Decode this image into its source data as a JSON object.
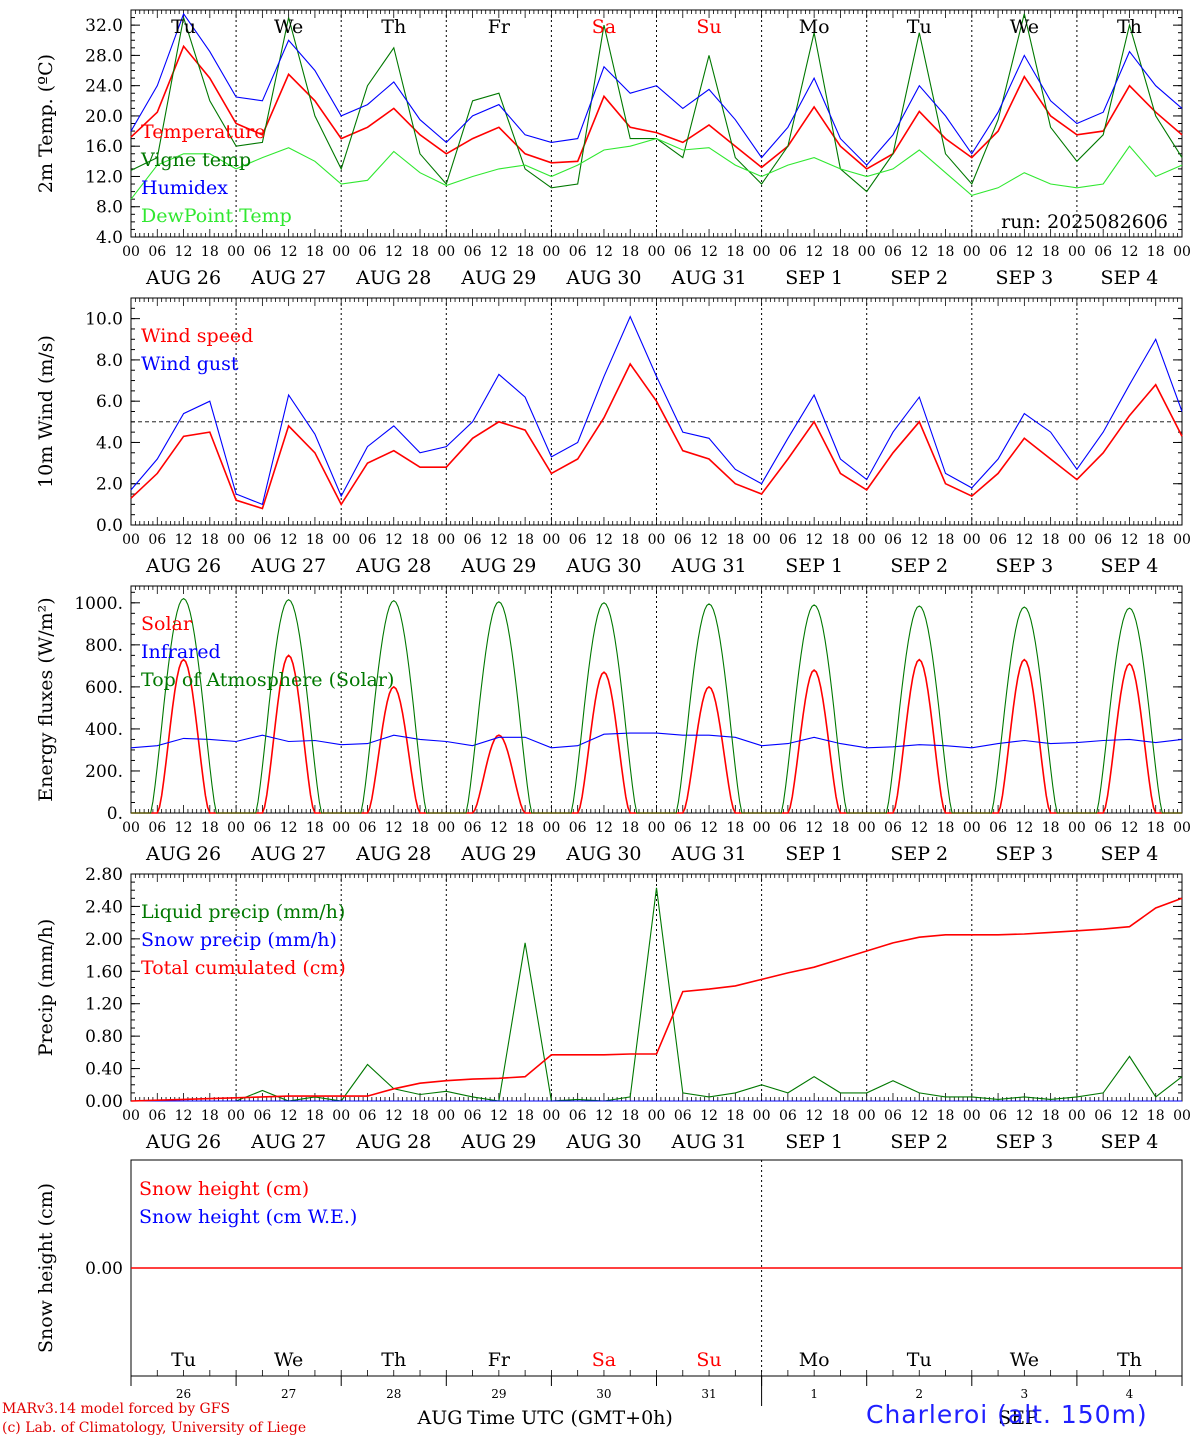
{
  "colors": {
    "red": "#ff0000",
    "blue": "#0000ff",
    "green": "#007800",
    "lightgreen": "#30e830",
    "axis": "#000000",
    "weekend": "#ff0000"
  },
  "days": [
    {
      "dow": "Tu",
      "date": "AUG 26",
      "num": "26",
      "weekend": false
    },
    {
      "dow": "We",
      "date": "AUG 27",
      "num": "27",
      "weekend": false
    },
    {
      "dow": "Th",
      "date": "AUG 28",
      "num": "28",
      "weekend": false
    },
    {
      "dow": "Fr",
      "date": "AUG 29",
      "num": "29",
      "weekend": false
    },
    {
      "dow": "Sa",
      "date": "AUG 30",
      "num": "30",
      "weekend": true
    },
    {
      "dow": "Su",
      "date": "AUG 31",
      "num": "31",
      "weekend": true
    },
    {
      "dow": "Mo",
      "date": "SEP  1",
      "num": "1",
      "weekend": false
    },
    {
      "dow": "Tu",
      "date": "SEP  2",
      "num": "2",
      "weekend": false
    },
    {
      "dow": "We",
      "date": "SEP  3",
      "num": "3",
      "weekend": false
    },
    {
      "dow": "Th",
      "date": "SEP  4",
      "num": "4",
      "weekend": false
    }
  ],
  "hour_labels": [
    "00",
    "06",
    "12",
    "18"
  ],
  "end_hour_label": "00",
  "month_labels": {
    "left": "AUG",
    "right": "SEP"
  },
  "xlabel": "Time UTC (GMT+0h)",
  "footer": {
    "model": "MARv3.14 model forced by GFS",
    "credit": "(c) Lab. of Climatology, University of Liege",
    "station": "Charleroi (alt. 150m)"
  },
  "chart_data": [
    {
      "type": "line",
      "ylabel": "2m Temp. (ºC)",
      "ylim": [
        4,
        34
      ],
      "yticks": [
        "4.0",
        "8.0",
        "12.0",
        "16.0",
        "20.0",
        "24.0",
        "28.0",
        "32.0"
      ],
      "ytick_values": [
        4,
        8,
        12,
        16,
        20,
        24,
        28,
        32
      ],
      "annotation": "run: 2025082606",
      "x_hours": [
        0,
        6,
        12,
        18,
        24,
        30,
        36,
        42,
        48,
        54,
        60,
        66,
        72,
        78,
        84,
        90,
        96,
        102,
        108,
        114,
        120,
        126,
        132,
        138,
        144,
        150,
        156,
        162,
        168,
        174,
        180,
        186,
        192,
        198,
        204,
        210,
        216,
        222,
        228,
        234,
        240
      ],
      "series": [
        {
          "name": "Temperature",
          "color": "red",
          "values": [
            17.2,
            20.5,
            29.2,
            25.0,
            19.0,
            17.5,
            25.5,
            22.0,
            17.0,
            18.5,
            21.0,
            17.5,
            15.0,
            17.0,
            18.5,
            15.0,
            13.8,
            14.0,
            22.6,
            18.5,
            17.8,
            16.5,
            18.8,
            16.0,
            13.2,
            16.0,
            21.2,
            16.0,
            13.0,
            15.0,
            20.6,
            17.0,
            14.5,
            18.0,
            25.2,
            20.0,
            17.5,
            18.0,
            24.0,
            20.5,
            17.5
          ]
        },
        {
          "name": "Vigne temp",
          "color": "green",
          "values": [
            12.8,
            14.5,
            33.0,
            22.0,
            16.0,
            16.5,
            33.0,
            20.0,
            13.0,
            24.0,
            29.0,
            15.0,
            11.0,
            22.0,
            23.0,
            13.0,
            10.5,
            11.0,
            32.0,
            17.0,
            17.0,
            14.5,
            28.0,
            14.5,
            11.0,
            16.0,
            31.0,
            13.0,
            10.0,
            15.0,
            31.0,
            15.0,
            11.0,
            19.5,
            33.5,
            18.5,
            14.0,
            17.5,
            32.0,
            20.0,
            14.5
          ]
        },
        {
          "name": "Humidex",
          "color": "blue",
          "values": [
            18.0,
            24.0,
            33.5,
            28.5,
            22.5,
            22.0,
            30.0,
            26.0,
            20.0,
            21.5,
            24.5,
            19.5,
            16.5,
            20.0,
            21.5,
            17.5,
            16.5,
            17.0,
            26.5,
            23.0,
            24.0,
            21.0,
            23.5,
            19.5,
            14.5,
            18.5,
            25.0,
            17.0,
            13.5,
            17.5,
            24.0,
            20.0,
            15.0,
            20.5,
            28.0,
            22.0,
            19.0,
            20.5,
            28.5,
            24.0,
            21.0
          ]
        },
        {
          "name": "DewPoint Temp",
          "color": "lightgreen",
          "values": [
            9.0,
            13.5,
            15.0,
            15.0,
            13.0,
            14.5,
            15.8,
            14.0,
            11.0,
            11.5,
            15.3,
            12.5,
            10.8,
            12.0,
            13.0,
            13.5,
            12.0,
            13.5,
            15.5,
            16.0,
            17.0,
            15.5,
            15.8,
            13.5,
            12.0,
            13.5,
            14.5,
            13.0,
            12.0,
            13.0,
            15.5,
            12.5,
            9.5,
            10.5,
            12.5,
            11.0,
            10.5,
            11.0,
            16.0,
            12.0,
            13.5
          ]
        }
      ]
    },
    {
      "type": "line",
      "ylabel": "10m Wind (m/s)",
      "ylim": [
        0,
        11
      ],
      "yticks": [
        "0.0",
        "2.0",
        "4.0",
        "6.0",
        "8.0",
        "10.0"
      ],
      "ytick_values": [
        0,
        2,
        4,
        6,
        8,
        10
      ],
      "reference_line": 5,
      "x_hours": [
        0,
        6,
        12,
        18,
        24,
        30,
        36,
        42,
        48,
        54,
        60,
        66,
        72,
        78,
        84,
        90,
        96,
        102,
        108,
        114,
        120,
        126,
        132,
        138,
        144,
        150,
        156,
        162,
        168,
        174,
        180,
        186,
        192,
        198,
        204,
        210,
        216,
        222,
        228,
        234,
        240
      ],
      "series": [
        {
          "name": "Wind speed",
          "color": "red",
          "values": [
            1.3,
            2.5,
            4.3,
            4.5,
            1.2,
            0.8,
            4.8,
            3.5,
            1.0,
            3.0,
            3.6,
            2.8,
            2.8,
            4.2,
            5.0,
            4.6,
            2.5,
            3.2,
            5.2,
            7.8,
            6.0,
            3.6,
            3.2,
            2.0,
            1.5,
            3.2,
            5.0,
            2.5,
            1.7,
            3.5,
            5.0,
            2.0,
            1.4,
            2.5,
            4.2,
            3.2,
            2.2,
            3.5,
            5.3,
            6.8,
            4.3
          ]
        },
        {
          "name": "Wind gust",
          "color": "blue",
          "values": [
            1.7,
            3.2,
            5.4,
            6.0,
            1.5,
            1.0,
            6.3,
            4.4,
            1.4,
            3.8,
            4.8,
            3.5,
            3.8,
            5.0,
            7.3,
            6.2,
            3.3,
            4.0,
            7.2,
            10.1,
            7.2,
            4.5,
            4.2,
            2.7,
            2.0,
            4.2,
            6.3,
            3.2,
            2.2,
            4.5,
            6.2,
            2.5,
            1.8,
            3.2,
            5.4,
            4.5,
            2.7,
            4.5,
            6.8,
            9.0,
            5.5
          ]
        }
      ]
    },
    {
      "type": "line",
      "ylabel": "Energy fluxes (W/m²)",
      "ylim": [
        0,
        1080
      ],
      "yticks": [
        "0.",
        "200.",
        "400.",
        "600.",
        "800.",
        "1000."
      ],
      "ytick_values": [
        0,
        200,
        400,
        600,
        800,
        1000
      ],
      "x_hours": [
        0,
        6,
        12,
        18,
        24,
        30,
        36,
        42,
        48,
        54,
        60,
        66,
        72,
        78,
        84,
        90,
        96,
        102,
        108,
        114,
        120,
        126,
        132,
        138,
        144,
        150,
        156,
        162,
        168,
        174,
        180,
        186,
        192,
        198,
        204,
        210,
        216,
        222,
        228,
        234,
        240
      ],
      "solar_peaks": [
        730,
        750,
        600,
        370,
        670,
        600,
        680,
        730,
        730,
        710
      ],
      "toa_peaks": [
        1020,
        1015,
        1010,
        1005,
        1000,
        995,
        990,
        985,
        980,
        975
      ],
      "series": [
        {
          "name": "Solar",
          "color": "red",
          "values": [
            0,
            200,
            730,
            200,
            0,
            150,
            750,
            200,
            0,
            350,
            600,
            150,
            0,
            300,
            370,
            50,
            0,
            200,
            670,
            100,
            0,
            250,
            600,
            80,
            0,
            220,
            680,
            100,
            0,
            200,
            730,
            150,
            0,
            210,
            730,
            120,
            0,
            200,
            710,
            150,
            0
          ]
        },
        {
          "name": "Infrared",
          "color": "blue",
          "values": [
            310,
            320,
            355,
            350,
            340,
            370,
            340,
            345,
            325,
            330,
            370,
            350,
            340,
            320,
            360,
            360,
            310,
            320,
            375,
            380,
            380,
            370,
            370,
            360,
            320,
            330,
            360,
            330,
            310,
            315,
            325,
            320,
            310,
            330,
            345,
            330,
            335,
            345,
            350,
            335,
            350
          ]
        },
        {
          "name": "Top of Atmosphere (Solar)",
          "color": "green",
          "values": [
            0,
            310,
            1020,
            310,
            0,
            300,
            1015,
            300,
            0,
            300,
            1010,
            300,
            0,
            300,
            1005,
            300,
            0,
            300,
            1000,
            300,
            0,
            295,
            995,
            295,
            0,
            295,
            990,
            295,
            0,
            295,
            985,
            295,
            0,
            290,
            980,
            290,
            0,
            290,
            975,
            290,
            0
          ]
        }
      ]
    },
    {
      "type": "line",
      "ylabel": "Precip (mm/h)",
      "ylim": [
        0,
        2.8
      ],
      "yticks": [
        "0.00",
        "0.40",
        "0.80",
        "1.20",
        "1.60",
        "2.00",
        "2.40",
        "2.80"
      ],
      "ytick_values": [
        0,
        0.4,
        0.8,
        1.2,
        1.6,
        2.0,
        2.4,
        2.8
      ],
      "x_hours": [
        0,
        6,
        12,
        18,
        24,
        30,
        36,
        42,
        48,
        54,
        60,
        66,
        72,
        78,
        84,
        90,
        96,
        102,
        108,
        114,
        120,
        126,
        132,
        138,
        144,
        150,
        156,
        162,
        168,
        174,
        180,
        186,
        192,
        198,
        204,
        210,
        216,
        222,
        228,
        234,
        240
      ],
      "series": [
        {
          "name": "Liquid precip (mm/h)",
          "color": "green",
          "values": [
            0,
            0,
            0,
            0,
            0,
            0.13,
            0,
            0.05,
            0,
            0.45,
            0.15,
            0.08,
            0.12,
            0.05,
            0,
            1.95,
            0,
            0.02,
            0,
            0.05,
            2.63,
            0.1,
            0.05,
            0.1,
            0.2,
            0.1,
            0.3,
            0.1,
            0.1,
            0.25,
            0.1,
            0.05,
            0.05,
            0.02,
            0.05,
            0.02,
            0.05,
            0.1,
            0.55,
            0.05,
            0.3
          ]
        },
        {
          "name": "Snow precip (mm/h)",
          "color": "blue",
          "values": [
            0,
            0,
            0,
            0,
            0,
            0,
            0,
            0,
            0,
            0,
            0,
            0,
            0,
            0,
            0,
            0,
            0,
            0,
            0,
            0,
            0,
            0,
            0,
            0,
            0,
            0,
            0,
            0,
            0,
            0,
            0,
            0,
            0,
            0,
            0,
            0,
            0,
            0,
            0,
            0,
            0
          ]
        },
        {
          "name": "Total cumulated (cm)",
          "color": "red",
          "values": [
            0,
            0.01,
            0.02,
            0.03,
            0.04,
            0.05,
            0.06,
            0.06,
            0.06,
            0.06,
            0.15,
            0.22,
            0.25,
            0.27,
            0.28,
            0.3,
            0.57,
            0.57,
            0.57,
            0.58,
            0.58,
            1.35,
            1.38,
            1.42,
            1.5,
            1.58,
            1.65,
            1.75,
            1.85,
            1.95,
            2.02,
            2.05,
            2.05,
            2.05,
            2.06,
            2.08,
            2.1,
            2.12,
            2.15,
            2.38,
            2.5
          ]
        }
      ]
    },
    {
      "type": "line",
      "ylabel": "Snow height (cm)",
      "ylim": [
        -1,
        1
      ],
      "yticks": [
        "0.00"
      ],
      "ytick_values": [
        0
      ],
      "x_hours": [
        0,
        240
      ],
      "series": [
        {
          "name": "Snow height (cm)",
          "color": "red",
          "values": [
            0,
            0
          ]
        },
        {
          "name": "Snow height (cm W.E.)",
          "color": "blue",
          "values": [
            0,
            0
          ]
        }
      ]
    }
  ]
}
